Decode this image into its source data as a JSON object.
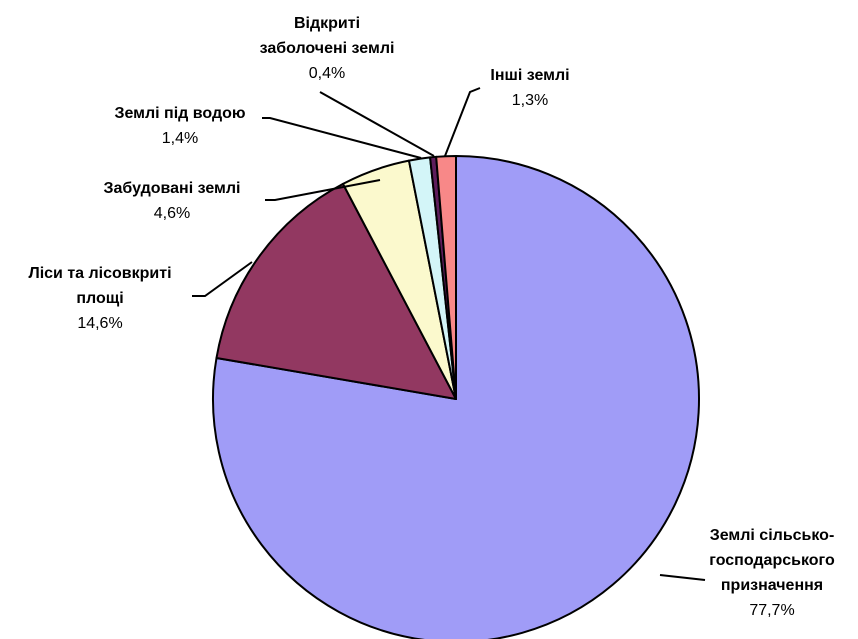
{
  "chart_data": {
    "type": "pie",
    "slices": [
      {
        "name_lines": [
          "Землі сільсько-",
          "господарського",
          "призначення"
        ],
        "value": 77.7,
        "value_label": "77,7%",
        "color": "#a09cf7"
      },
      {
        "name_lines": [
          "Ліси та лісовкриті",
          "площі"
        ],
        "value": 14.6,
        "value_label": "14,6%",
        "color": "#923861"
      },
      {
        "name_lines": [
          "Забудовані землі"
        ],
        "value": 4.6,
        "value_label": "4,6%",
        "color": "#fbf9cd"
      },
      {
        "name_lines": [
          "Землі під водою"
        ],
        "value": 1.4,
        "value_label": "1,4%",
        "color": "#d3f5f8"
      },
      {
        "name_lines": [
          "Відкриті",
          "заболочені землі"
        ],
        "value": 0.4,
        "value_label": "0,4%",
        "color": "#5e1d5c"
      },
      {
        "name_lines": [
          "Інші землі"
        ],
        "value": 1.3,
        "value_label": "1,3%",
        "color": "#f88888"
      }
    ]
  }
}
